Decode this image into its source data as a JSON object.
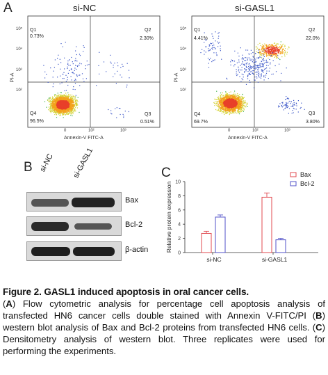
{
  "panelA": {
    "letter": "A",
    "plots": [
      {
        "title": "si-NC",
        "quadrants": {
          "q1": "Q1",
          "q1_value": "0.73%",
          "q2": "Q2",
          "q2_value": "2.30%",
          "q3": "Q3",
          "q3_value": "0.51%",
          "q4": "Q4",
          "q4_value": "96.5%"
        },
        "xlabel": "Annexin-V FITC-A",
        "ylabel": "PI-A",
        "xticks": [
          "0",
          "10²",
          "10³"
        ],
        "yticks": [
          "10⁵",
          "10⁴",
          "10³",
          "10²"
        ]
      },
      {
        "title": "si-GASL1",
        "quadrants": {
          "q1": "Q1",
          "q1_value": "4.41%",
          "q2": "Q2",
          "q2_value": "22.0%",
          "q3": "Q3",
          "q3_value": "3.80%",
          "q4": "Q4",
          "q4_value": "69.7%"
        },
        "xlabel": "Annexin-V FITC-A",
        "ylabel": "PI-A",
        "xticks": [
          "0",
          "10²",
          "10³"
        ],
        "yticks": [
          "10⁵",
          "10⁴",
          "10³",
          "10²"
        ]
      }
    ]
  },
  "panelB": {
    "letter": "B",
    "lanes": [
      "si-NC",
      "si-GASL1"
    ],
    "bands": [
      "Bax",
      "Bcl-2",
      "β-actin"
    ]
  },
  "panelC": {
    "letter": "C",
    "legend": [
      "Bax",
      "Bcl-2"
    ],
    "colors": {
      "Bax": "#e0484f",
      "Bcl-2": "#5252c8"
    }
  },
  "chart_data": {
    "type": "bar",
    "categories": [
      "si-NC",
      "si-GASL1"
    ],
    "series": [
      {
        "name": "Bax",
        "values": [
          2.7,
          7.8
        ],
        "errors": [
          0.3,
          0.6
        ]
      },
      {
        "name": "Bcl-2",
        "values": [
          5.0,
          1.8
        ],
        "errors": [
          0.3,
          0.2
        ]
      }
    ],
    "ylabel": "Relative protein expression",
    "ylim": [
      0,
      10
    ],
    "yticks": [
      "0",
      "2",
      "4",
      "6",
      "8",
      "10"
    ]
  },
  "caption": {
    "title": "Figure 2. GASL1 induced apoptosis in oral cancer cells.",
    "A": "A",
    "text_A": " Flow cytometric analysis for percentage cell apoptosis analysis of transfected HN6 cancer cells double stained with Annexin V-FITC/PI (",
    "B": "B",
    "text_B": ") western blot analysis of Bax and Bcl-2 proteins from transfected HN6 cells. (",
    "C": "C",
    "text_C": ") Densitometry analysis of western blot. Three replicates were used for performing the experiments."
  }
}
